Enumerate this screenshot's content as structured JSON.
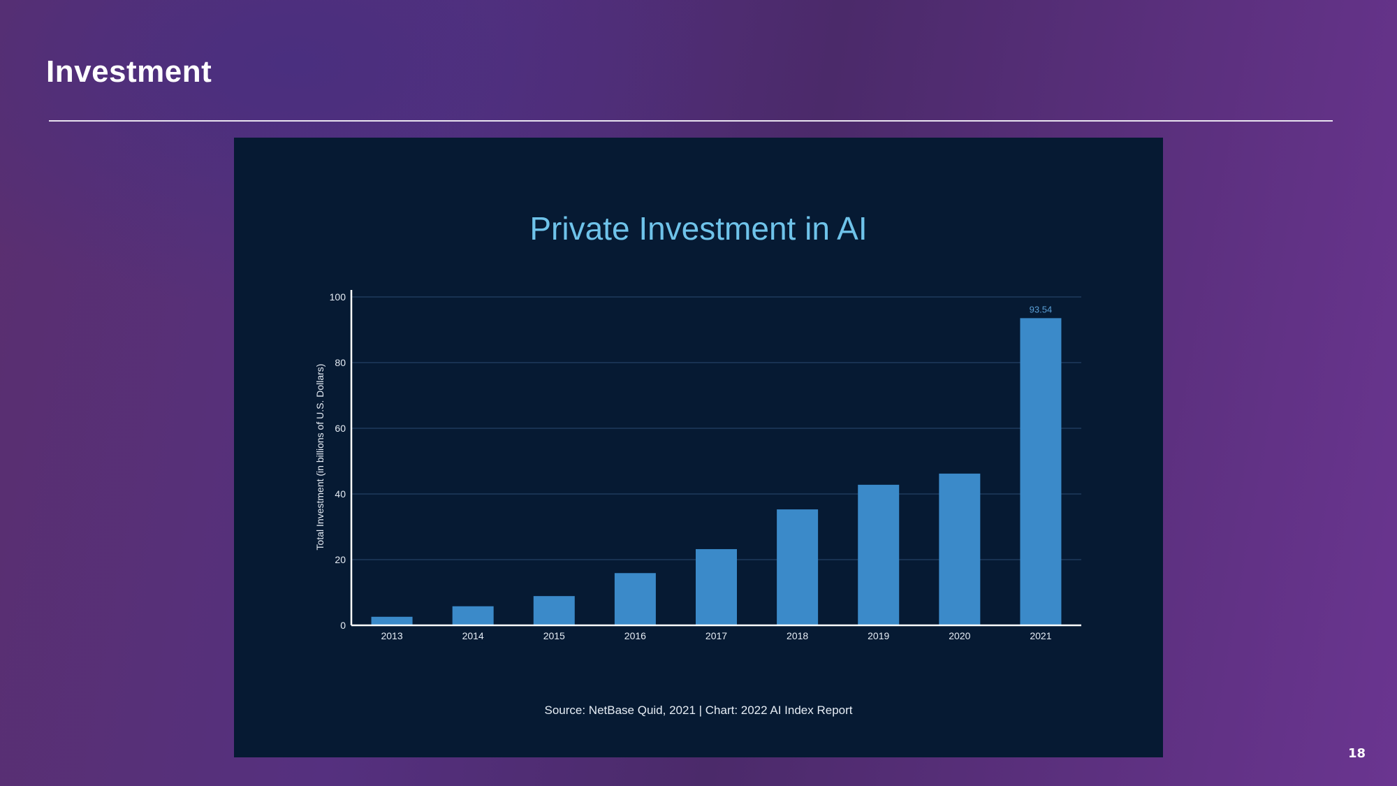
{
  "slide": {
    "title": "Investment",
    "page_number": "18"
  },
  "chart_data": {
    "type": "bar",
    "title": "Private Investment in AI",
    "ylabel": "Total Investment (in billions of U.S. Dollars)",
    "xlabel": "",
    "categories": [
      "2013",
      "2014",
      "2015",
      "2016",
      "2017",
      "2018",
      "2019",
      "2020",
      "2021"
    ],
    "values": [
      2.6,
      5.8,
      8.9,
      15.9,
      23.2,
      35.3,
      42.8,
      46.2,
      93.54
    ],
    "value_labels": [
      "",
      "",
      "",
      "",
      "",
      "",
      "",
      "",
      "93.54"
    ],
    "ylim": [
      0,
      100
    ],
    "yticks": [
      0,
      20,
      40,
      60,
      80,
      100
    ],
    "grid": true,
    "source": "Source: NetBase Quid, 2021 | Chart: 2022 AI Index Report",
    "colors": {
      "background": "#061a33",
      "bar": "#3b8ac9",
      "title": "#6fc3ea",
      "value_label": "#5a9fd6",
      "axis": "#ffffff",
      "grid": "#1f3a5c",
      "text": "#e6edf5"
    }
  }
}
